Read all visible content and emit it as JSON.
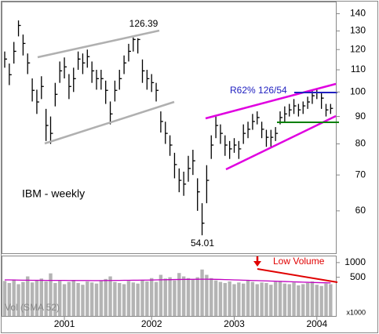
{
  "chart_data": {
    "type": "ohlc",
    "title": "IBM - weekly",
    "log_scale": true,
    "color": "#000000",
    "annotations": [
      "126.39",
      "54.01",
      "R62% 126/54",
      "Low Volume"
    ],
    "categories": [
      null,
      null,
      null,
      null,
      null,
      null,
      null,
      null,
      null,
      null,
      null,
      null,
      null,
      "2001",
      null,
      null,
      null,
      null,
      null,
      null,
      null,
      null,
      null,
      null,
      null,
      null,
      null,
      null,
      null,
      null,
      null,
      null,
      "2002",
      null,
      null,
      null,
      null,
      null,
      null,
      null,
      null,
      null,
      null,
      null,
      null,
      null,
      null,
      null,
      null,
      null,
      "2003",
      null,
      null,
      null,
      null,
      null,
      null,
      null,
      null,
      null,
      null,
      null,
      null,
      null,
      null,
      null,
      null,
      null,
      "2004",
      null,
      null,
      null
    ],
    "high": [
      119,
      113,
      124,
      136,
      128,
      118,
      106,
      101,
      107,
      93,
      90,
      104,
      114,
      116,
      108,
      111,
      119,
      118,
      120,
      114,
      110,
      110,
      105,
      96,
      105,
      110,
      117,
      123,
      126.39,
      126,
      115,
      110,
      108,
      104,
      92,
      88,
      83,
      77,
      72,
      71,
      76,
      78,
      69,
      62,
      73,
      83,
      90,
      87,
      83,
      81,
      82,
      81,
      87,
      88,
      91,
      92,
      88,
      85,
      85,
      86,
      92,
      94,
      95,
      97,
      95,
      96,
      98,
      101,
      101.5,
      100,
      95,
      95
    ],
    "low": [
      111,
      103,
      113,
      127,
      117,
      108,
      96,
      91,
      97,
      81,
      80,
      94,
      104,
      106,
      97,
      100,
      110,
      108,
      111,
      104,
      101,
      101,
      95,
      87,
      96,
      101,
      108,
      114,
      119,
      118,
      104,
      101,
      100,
      96,
      84,
      80,
      76,
      69,
      65,
      64,
      68,
      70,
      60,
      54.01,
      62,
      75,
      82,
      80,
      76,
      75,
      77,
      75,
      80,
      82,
      85,
      87,
      82,
      79,
      79,
      81,
      87,
      88,
      90,
      91,
      90,
      91,
      93,
      95,
      97,
      93,
      90,
      91
    ],
    "close": [
      115.2,
      107.7,
      119.1,
      133.1,
      123.2,
      113.3,
      100.7,
      95.8,
      102.4,
      86.6,
      83.7,
      99.0,
      109.5,
      111.4,
      102.4,
      105.9,
      115.2,
      113.3,
      116.4,
      109.5,
      105.9,
      105.9,
      100.7,
      91.0,
      100.7,
      105.9,
      113.3,
      119.1,
      125.3,
      125.3,
      109.5,
      105.9,
      104.1,
      100.7,
      88.1,
      83.7,
      79.6,
      73.2,
      68.4,
      67.3,
      72.0,
      74.4,
      65.1,
      56.9,
      68.4,
      79.6,
      86.6,
      83.7,
      79.6,
      78.3,
      79.6,
      78.3,
      83.7,
      85.2,
      88.1,
      89.6,
      85.2,
      82.3,
      82.3,
      83.7,
      89.6,
      91.0,
      92.6,
      94.2,
      92.6,
      94.2,
      95.8,
      98.4,
      99.7,
      97.4,
      92.6,
      93.2
    ],
    "ylim": [
      50,
      147
    ],
    "yticks": [
      60,
      70,
      80,
      90,
      100,
      110,
      120,
      130,
      140
    ],
    "volume": {
      "name": "Vol (SMA 52)",
      "unit": "x1000",
      "color": "#b4b4b4",
      "sma_color": "#c000c0",
      "log_scale": true,
      "values": [
        420,
        380,
        450,
        360,
        400,
        520,
        390,
        430,
        470,
        410,
        600,
        380,
        420,
        360,
        400,
        440,
        380,
        350,
        410,
        390,
        370,
        430,
        460,
        520,
        400,
        380,
        360,
        420,
        390,
        370,
        440,
        410,
        480,
        400,
        560,
        470,
        500,
        430,
        610,
        520,
        480,
        450,
        500,
        720,
        560,
        480,
        430,
        400,
        380,
        410,
        360,
        390,
        370,
        430,
        400,
        360,
        390,
        380,
        350,
        400,
        420,
        370,
        360,
        390,
        340,
        360,
        380,
        410,
        350,
        330,
        370,
        360
      ],
      "sma": [
        440,
        440,
        438,
        436,
        435,
        434,
        433,
        432,
        432,
        431,
        431,
        430,
        430,
        430,
        429,
        429,
        428,
        428,
        428,
        427,
        427,
        427,
        428,
        429,
        430,
        431,
        432,
        433,
        434,
        435,
        436,
        437,
        438,
        440,
        442,
        444,
        446,
        448,
        450,
        451,
        452,
        453,
        454,
        455,
        455,
        454,
        452,
        450,
        447,
        444,
        441,
        438,
        435,
        432,
        429,
        426,
        423,
        420,
        417,
        414,
        411,
        408,
        405,
        402,
        399,
        396,
        393,
        390,
        388,
        386,
        384,
        382
      ],
      "ylim": [
        80,
        1340
      ],
      "yticks": [
        500,
        1000
      ]
    }
  }
}
